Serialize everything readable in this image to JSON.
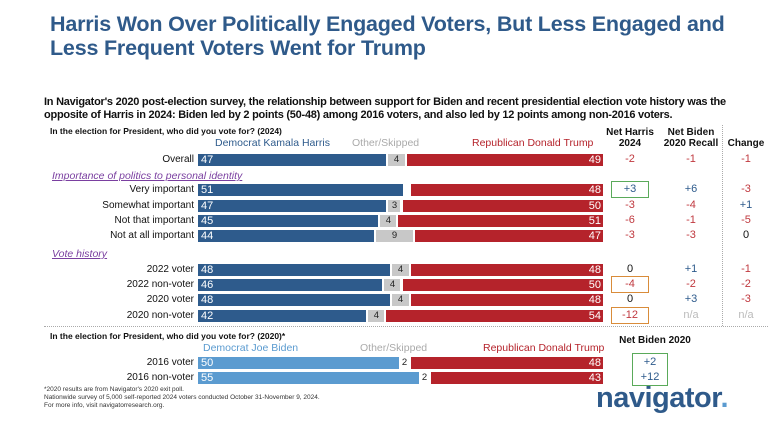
{
  "title": "Harris Won Over Politically Engaged Voters, But Less Engaged and Less Frequent Voters Went for Trump",
  "subtitle": "In Navigator's 2020 post-election survey, the relationship between support for Biden and recent presidential election vote history was the opposite of Harris in 2024: Biden led by 2 points (50-48) among 2016 voters, and also led by 12 points among non-2016 voters.",
  "colors": {
    "dem": "#2e5b8c",
    "dem2020": "#5b9bd0",
    "rep": "#b5232b",
    "other": "#c8c8c8",
    "neg": "#c0393f",
    "pos": "#2e5b8c",
    "green": "#5aaa5a",
    "orange": "#d98c3a"
  },
  "chart_data": [
    {
      "type": "bar",
      "stacked": true,
      "orientation": "horizontal",
      "title": "In the election for President, who did you vote for? (2024)",
      "legend": [
        "Democrat Kamala Harris",
        "Other/Skipped",
        "Republican Donald Trump"
      ],
      "columns": [
        "Net Harris 2024",
        "Net Biden 2020 Recall",
        "Change"
      ],
      "groups": [
        {
          "name": "",
          "rows": [
            {
              "label": "Overall",
              "dem": 47,
              "other": 4,
              "rep": 49,
              "net": "-2",
              "recall": "-1",
              "change": "-1"
            }
          ]
        },
        {
          "name": "Importance of politics to personal identity",
          "rows": [
            {
              "label": "Very important",
              "dem": 51,
              "other": 1,
              "rep": 48,
              "net": "+3",
              "recall": "+6",
              "change": "-3",
              "box": "green"
            },
            {
              "label": "Somewhat important",
              "dem": 47,
              "other": 3,
              "rep": 50,
              "net": "-3",
              "recall": "-4",
              "change": "+1"
            },
            {
              "label": "Not that important",
              "dem": 45,
              "other": 4,
              "rep": 51,
              "net": "-6",
              "recall": "-1",
              "change": "-5"
            },
            {
              "label": "Not at all important",
              "dem": 44,
              "other": 9,
              "rep": 47,
              "net": "-3",
              "recall": "-3",
              "change": "0"
            }
          ]
        },
        {
          "name": "Vote history",
          "rows": [
            {
              "label": "2022 voter",
              "dem": 48,
              "other": 4,
              "rep": 48,
              "net": "0",
              "recall": "+1",
              "change": "-1"
            },
            {
              "label": "2022 non-voter",
              "dem": 46,
              "other": 4,
              "rep": 50,
              "net": "-4",
              "recall": "-2",
              "change": "-2",
              "box": "orange"
            },
            {
              "label": "2020 voter",
              "dem": 48,
              "other": 4,
              "rep": 48,
              "net": "0",
              "recall": "+3",
              "change": "-3"
            },
            {
              "label": "2020 non-voter",
              "dem": 42,
              "other": 4,
              "rep": 54,
              "net": "-12",
              "recall": "n/a",
              "change": "n/a",
              "box": "orange"
            }
          ]
        }
      ]
    },
    {
      "type": "bar",
      "stacked": true,
      "orientation": "horizontal",
      "title": "In the election for President, who did you vote for? (2020)*",
      "legend": [
        "Democrat Joe Biden",
        "Other/Skipped",
        "Republican Donald Trump"
      ],
      "columns": [
        "Net Biden 2020"
      ],
      "rows": [
        {
          "label": "2016 voter",
          "dem": 50,
          "other": 2,
          "rep": 48,
          "net": "+2"
        },
        {
          "label": "2016 non-voter",
          "dem": 55,
          "other": 2,
          "rep": 43,
          "net": "+12"
        }
      ]
    }
  ],
  "footnotes": [
    "*2020 results are from Navigator's 2020 exit poll.",
    "Nationwide survey of 5,000 self-reported 2024 voters conducted October 31-November 9, 2024.",
    "For more info, visit navigatorresearch.org."
  ],
  "logo": {
    "text": "navigator",
    "dot": "."
  }
}
